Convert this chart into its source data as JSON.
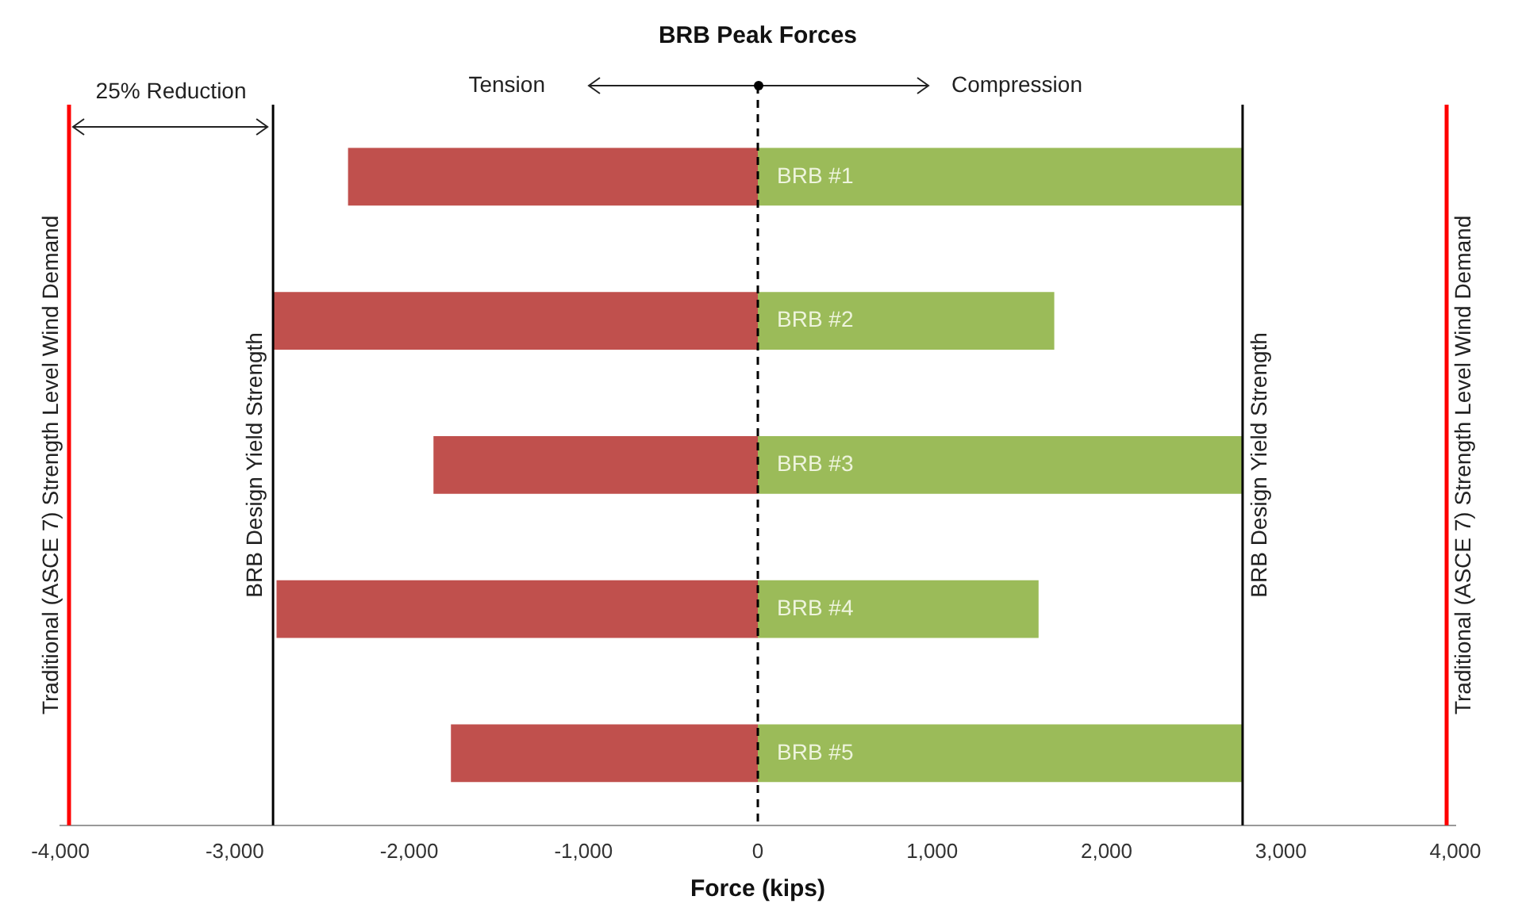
{
  "chart_data": {
    "type": "bar",
    "orientation": "horizontal",
    "stacked": true,
    "title": "BRB Peak Forces",
    "xlabel": "Force (kips)",
    "categories": [
      "BRB #1",
      "BRB #2",
      "BRB #3",
      "BRB #4",
      "BRB #5"
    ],
    "series": [
      {
        "color": "#c0504d",
        "values": [
          -2350,
          -2780,
          -1860,
          -2760,
          -1760
        ]
      },
      {
        "color": "#9bbb59",
        "values": [
          2780,
          1700,
          2780,
          1610,
          2780
        ]
      }
    ],
    "xlim": [
      -4000,
      4000
    ],
    "xticks": [
      {
        "value": -4000,
        "label": "-4,000"
      },
      {
        "value": -3000,
        "label": "-3,000"
      },
      {
        "value": -2000,
        "label": "-2,000"
      },
      {
        "value": -1000,
        "label": "-1,000"
      },
      0,
      {
        "value": 1000,
        "label": "1,000"
      },
      {
        "value": 2000,
        "label": "2,000"
      },
      {
        "value": 3000,
        "label": "3,000"
      },
      {
        "value": 4000,
        "label": "4,000"
      }
    ],
    "tick_labels": "x",
    "ref_lines": [
      {
        "axis": "x",
        "value": 0,
        "color": "#000000",
        "line_style": "dashed"
      },
      {
        "axis": "x",
        "value": -2780,
        "label": "BRB Design Yield Strength",
        "color": "#000000"
      },
      {
        "axis": "x",
        "value": 2780,
        "label": "BRB Design Yield Strength",
        "color": "#000000"
      },
      {
        "axis": "x",
        "value": -3950,
        "label": "Traditional (ASCE 7) Strength Level Wind Demand",
        "color": "#ff0000"
      },
      {
        "axis": "x",
        "value": 3950,
        "label": "Traditional (ASCE 7) Strength Level Wind Demand",
        "color": "#ff0000"
      }
    ],
    "annotations": [
      "Tension",
      "Compression",
      "25% Reduction"
    ]
  }
}
